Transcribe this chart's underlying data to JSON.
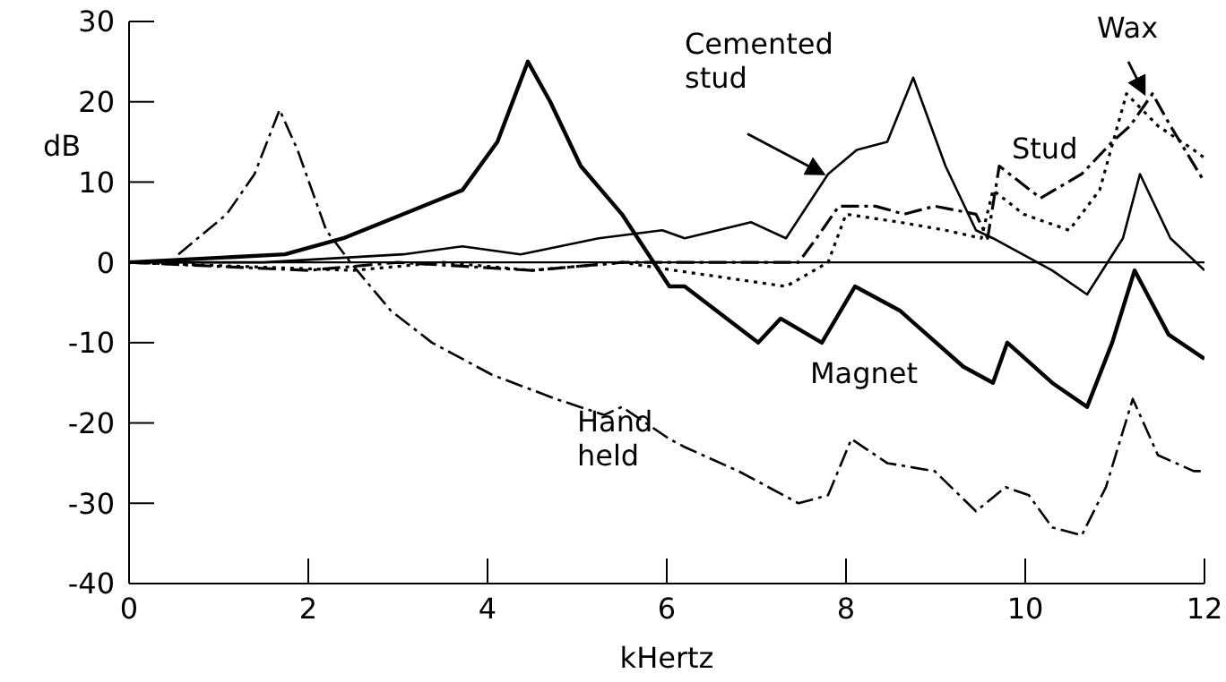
{
  "chart_data": {
    "type": "line",
    "xlabel": "kHertz",
    "ylabel": "dB",
    "xlim": [
      0,
      12
    ],
    "ylim": [
      -40,
      30
    ],
    "xticks": [
      0,
      2,
      4,
      6,
      8,
      10,
      12
    ],
    "yticks": [
      -40,
      -30,
      -20,
      -10,
      0,
      10,
      20,
      30
    ],
    "grid": false,
    "legend": false,
    "marker": "none",
    "ref_lines": [
      {
        "axis": "y",
        "value": 0,
        "color": "#000000"
      }
    ],
    "series": [
      {
        "name": "Hand held",
        "color": "#000000",
        "line_style": "dashed",
        "x": [
          0.55,
          1.09,
          1.4,
          1.68,
          1.88,
          2.2,
          2.47,
          2.92,
          3.38,
          4.05,
          4.76,
          5.3,
          5.5,
          6.03,
          6.2,
          6.8,
          7.47,
          7.8,
          8.06,
          8.46,
          8.99,
          9.45,
          9.78,
          10.04,
          10.3,
          10.63,
          10.9,
          11.2,
          11.48,
          11.88,
          12
        ],
        "values": [
          1,
          6,
          11,
          19,
          14,
          4,
          0,
          -6,
          -10,
          -14,
          -17,
          -19,
          -18,
          -22,
          -23,
          -26,
          -30,
          -29,
          -22,
          -25,
          -26,
          -31,
          -28,
          -29,
          -33,
          -34,
          -28,
          -17,
          -24,
          -26,
          -26
        ]
      },
      {
        "name": "Magnet",
        "color": "#000000",
        "line_style": "solid",
        "x": [
          0,
          1.74,
          2.39,
          3.06,
          3.72,
          4.11,
          4.45,
          4.7,
          5.04,
          5.5,
          6.03,
          6.2,
          7.02,
          7.27,
          7.73,
          8.1,
          8.6,
          9.31,
          9.64,
          9.8,
          10.3,
          10.69,
          10.97,
          11.22,
          11.6,
          12
        ],
        "values": [
          0,
          1,
          3,
          6,
          9,
          15,
          25,
          20,
          12,
          6,
          -3,
          -3,
          -10,
          -7,
          -10,
          -3,
          -6,
          -13,
          -15,
          -10,
          -15,
          -18,
          -10,
          -1,
          -9,
          -12
        ]
      },
      {
        "name": "Cemented stud",
        "color": "#000000",
        "line_style": "solid",
        "x": [
          0,
          1.5,
          3.06,
          3.72,
          4.37,
          5.24,
          5.95,
          6.2,
          6.94,
          7.33,
          7.8,
          8.12,
          8.46,
          8.75,
          9.11,
          9.45,
          9.64,
          10.3,
          10.69,
          11.09,
          11.28,
          11.62,
          12
        ],
        "values": [
          0,
          0,
          1,
          2,
          1,
          3,
          4,
          3,
          5,
          3,
          11,
          14,
          15,
          23,
          12,
          4,
          3,
          -1,
          -4,
          3,
          11,
          3,
          -1
        ]
      },
      {
        "name": "Stud",
        "color": "#000000",
        "line_style": "dashed",
        "x": [
          0,
          2,
          3,
          4.5,
          5.5,
          6.35,
          7.47,
          7.67,
          7.92,
          8.33,
          8.65,
          8.99,
          9.45,
          9.58,
          9.71,
          10.17,
          10.63,
          10.97,
          11.17,
          11.42,
          11.62,
          12
        ],
        "values": [
          0,
          -1,
          0,
          -1,
          0,
          0,
          0,
          3,
          7,
          7,
          6,
          7,
          6,
          3,
          12,
          8,
          11,
          15,
          17,
          21,
          17,
          10
        ]
      },
      {
        "name": "Wax",
        "color": "#000000",
        "line_style": "dotted",
        "x": [
          0,
          2.5,
          3.5,
          4.5,
          5.5,
          6.09,
          7.33,
          7.8,
          8,
          8.6,
          9.11,
          9.51,
          9.64,
          9.98,
          10.49,
          10.83,
          11.13,
          11.48,
          11.88,
          12
        ],
        "values": [
          0,
          -1,
          0,
          -1,
          0,
          -1,
          -3,
          0,
          6,
          5,
          4,
          3,
          9,
          6,
          4,
          9,
          21,
          17,
          14,
          13
        ]
      }
    ]
  }
}
